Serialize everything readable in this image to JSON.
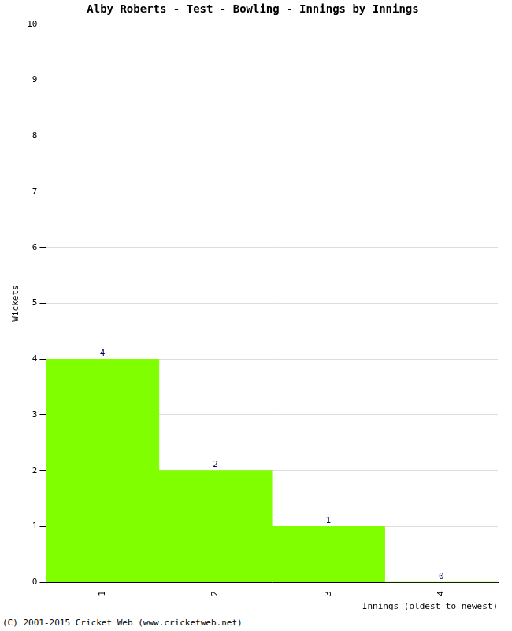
{
  "chart_data": {
    "type": "bar",
    "title": "Alby Roberts - Test - Bowling - Innings by Innings",
    "x_label": "Innings (oldest to newest)",
    "y_label": "Wickets",
    "categories": [
      "1",
      "2",
      "3",
      "4"
    ],
    "values": [
      4,
      2,
      1,
      0
    ],
    "color": "#80ff00",
    "ylim": [
      0,
      10
    ],
    "yticks": [
      0,
      1,
      2,
      3,
      4,
      5,
      6,
      7,
      8,
      9,
      10
    ],
    "grid": true,
    "data_labels": true,
    "annotations": [
      "(C) 2001-2015 Cricket Web (www.cricketweb.net)"
    ]
  }
}
